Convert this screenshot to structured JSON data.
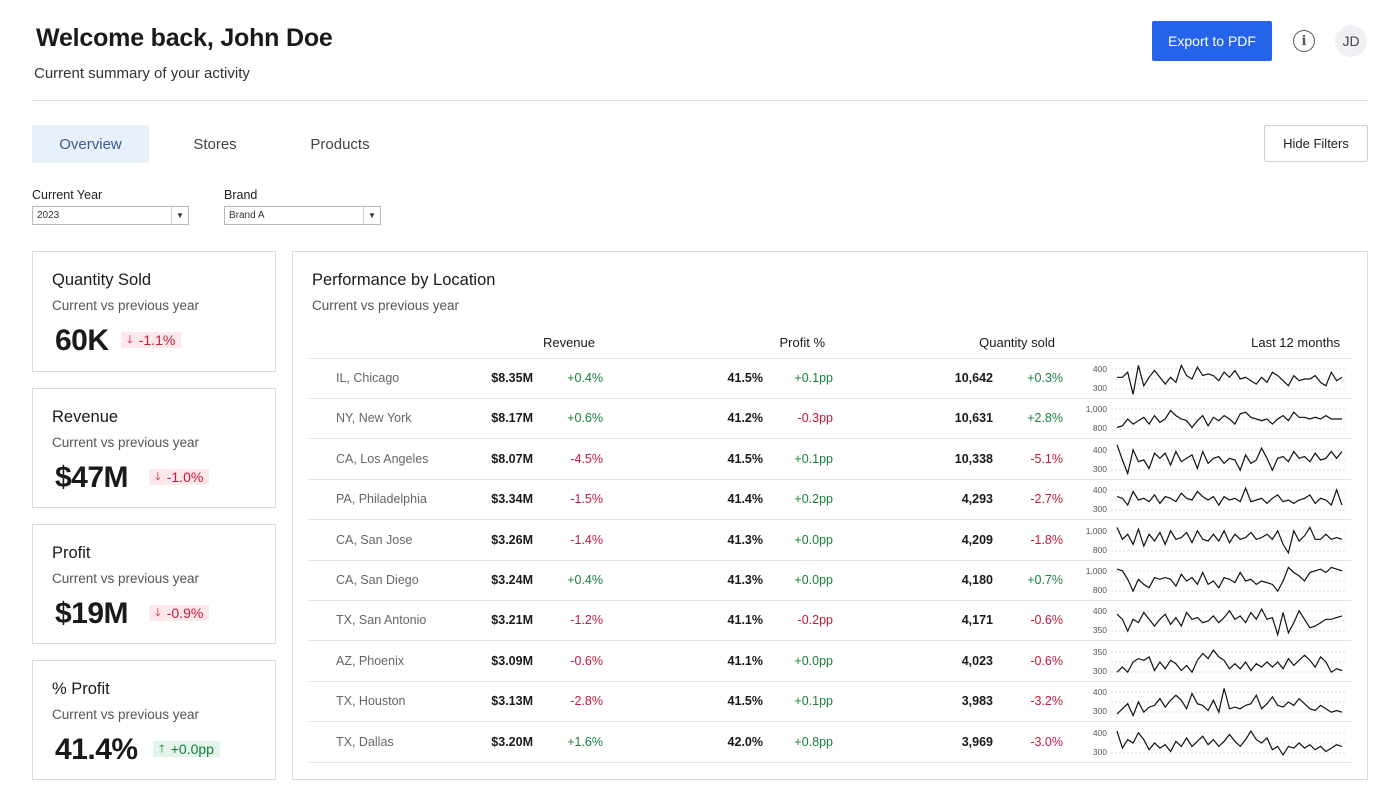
{
  "header": {
    "title": "Welcome back, John Doe",
    "subtitle": "Current summary of your activity",
    "export_label": "Export to PDF",
    "info_icon": "info-icon",
    "avatar_initials": "JD"
  },
  "tabs": [
    {
      "label": "Overview",
      "active": true
    },
    {
      "label": "Stores",
      "active": false
    },
    {
      "label": "Products",
      "active": false
    }
  ],
  "hide_filters_label": "Hide Filters",
  "filters": {
    "year": {
      "label": "Current Year",
      "value": "2023"
    },
    "brand": {
      "label": "Brand",
      "value": "Brand A"
    }
  },
  "kpis": [
    {
      "title": "Quantity Sold",
      "subtitle": "Current vs previous year",
      "value": "60K",
      "delta": "-1.1%",
      "direction": "down"
    },
    {
      "title": "Revenue",
      "subtitle": "Current vs previous year",
      "value": "$47M",
      "delta": "-1.0%",
      "direction": "down"
    },
    {
      "title": "Profit",
      "subtitle": "Current vs previous year",
      "value": "$19M",
      "delta": "-0.9%",
      "direction": "down"
    },
    {
      "title": "% Profit",
      "subtitle": "Current vs previous year",
      "value": "41.4%",
      "delta": "+0.0pp",
      "direction": "up"
    }
  ],
  "performance": {
    "title": "Performance by Location",
    "subtitle": "Current vs previous year",
    "columns": {
      "revenue": "Revenue",
      "profit": "Profit %",
      "quantity": "Quantity sold",
      "trend": "Last 12 months"
    },
    "rows": [
      {
        "location": "IL, Chicago",
        "revenue": "$8.35M",
        "revenue_delta": "+0.4%",
        "profit": "41.5%",
        "profit_delta": "+0.1pp",
        "quantity": "10,642",
        "quantity_delta": "+0.3%",
        "axis_top": "400",
        "axis_bottom": "300",
        "trend": [
          0.55,
          0.55,
          0.7,
          0.05,
          0.9,
          0.3,
          0.55,
          0.75,
          0.55,
          0.35,
          0.55,
          0.4,
          0.9,
          0.6,
          0.5,
          0.85,
          0.6,
          0.65,
          0.6,
          0.45,
          0.7,
          0.55,
          0.75,
          0.5,
          0.55,
          0.45,
          0.35,
          0.55,
          0.4,
          0.7,
          0.6,
          0.45,
          0.3,
          0.6,
          0.45,
          0.5,
          0.5,
          0.6,
          0.4,
          0.3,
          0.7,
          0.45,
          0.55
        ]
      },
      {
        "location": "NY, New York",
        "revenue": "$8.17M",
        "revenue_delta": "+0.6%",
        "profit": "41.2%",
        "profit_delta": "-0.3pp",
        "quantity": "10,631",
        "quantity_delta": "+2.8%",
        "axis_top": "1,000",
        "axis_bottom": "800",
        "trend": [
          0.25,
          0.3,
          0.5,
          0.35,
          0.45,
          0.55,
          0.35,
          0.6,
          0.4,
          0.5,
          0.75,
          0.6,
          0.5,
          0.45,
          0.25,
          0.45,
          0.6,
          0.3,
          0.55,
          0.45,
          0.6,
          0.5,
          0.35,
          0.65,
          0.7,
          0.55,
          0.5,
          0.45,
          0.5,
          0.35,
          0.5,
          0.6,
          0.45,
          0.7,
          0.55,
          0.55,
          0.5,
          0.55,
          0.5,
          0.6,
          0.5,
          0.5,
          0.5
        ]
      },
      {
        "location": "CA, Los Angeles",
        "revenue": "$8.07M",
        "revenue_delta": "-4.5%",
        "profit": "41.5%",
        "profit_delta": "+0.1pp",
        "quantity": "10,338",
        "quantity_delta": "-5.1%",
        "axis_top": "400",
        "axis_bottom": "300",
        "trend": [
          0.95,
          0.5,
          0.1,
          0.8,
          0.45,
          0.5,
          0.25,
          0.7,
          0.55,
          0.7,
          0.35,
          0.75,
          0.45,
          0.55,
          0.65,
          0.25,
          0.75,
          0.4,
          0.55,
          0.6,
          0.4,
          0.55,
          0.5,
          0.2,
          0.65,
          0.4,
          0.5,
          0.85,
          0.55,
          0.2,
          0.55,
          0.6,
          0.45,
          0.75,
          0.55,
          0.6,
          0.45,
          0.7,
          0.5,
          0.55,
          0.75,
          0.55,
          0.75
        ]
      },
      {
        "location": "PA, Philadelphia",
        "revenue": "$3.34M",
        "revenue_delta": "-1.5%",
        "profit": "41.4%",
        "profit_delta": "+0.2pp",
        "quantity": "4,293",
        "quantity_delta": "-2.7%",
        "axis_top": "400",
        "axis_bottom": "300",
        "trend": [
          0.6,
          0.55,
          0.35,
          0.75,
          0.5,
          0.55,
          0.45,
          0.65,
          0.4,
          0.6,
          0.55,
          0.45,
          0.7,
          0.55,
          0.5,
          0.75,
          0.6,
          0.5,
          0.6,
          0.35,
          0.6,
          0.5,
          0.55,
          0.45,
          0.85,
          0.45,
          0.5,
          0.55,
          0.4,
          0.55,
          0.65,
          0.45,
          0.5,
          0.4,
          0.5,
          0.55,
          0.65,
          0.4,
          0.55,
          0.5,
          0.35,
          0.8,
          0.35
        ]
      },
      {
        "location": "CA, San Jose",
        "revenue": "$3.26M",
        "revenue_delta": "-1.4%",
        "profit": "41.3%",
        "profit_delta": "+0.0pp",
        "quantity": "4,209",
        "quantity_delta": "-1.8%",
        "axis_top": "1,000",
        "axis_bottom": "800",
        "trend": [
          0.9,
          0.55,
          0.7,
          0.4,
          0.85,
          0.35,
          0.7,
          0.5,
          0.75,
          0.4,
          0.8,
          0.55,
          0.6,
          0.75,
          0.45,
          0.8,
          0.55,
          0.5,
          0.7,
          0.5,
          0.8,
          0.45,
          0.7,
          0.55,
          0.6,
          0.75,
          0.55,
          0.6,
          0.7,
          0.55,
          0.8,
          0.4,
          0.15,
          0.8,
          0.5,
          0.65,
          0.9,
          0.55,
          0.55,
          0.7,
          0.55,
          0.6,
          0.55
        ]
      },
      {
        "location": "CA, San Diego",
        "revenue": "$3.24M",
        "revenue_delta": "+0.4%",
        "profit": "41.3%",
        "profit_delta": "+0.0pp",
        "quantity": "4,180",
        "quantity_delta": "+0.7%",
        "axis_top": "1,000",
        "axis_bottom": "800",
        "trend": [
          0.85,
          0.8,
          0.55,
          0.2,
          0.55,
          0.4,
          0.3,
          0.6,
          0.55,
          0.6,
          0.55,
          0.35,
          0.7,
          0.5,
          0.6,
          0.4,
          0.75,
          0.4,
          0.5,
          0.3,
          0.6,
          0.55,
          0.45,
          0.75,
          0.5,
          0.55,
          0.4,
          0.5,
          0.45,
          0.4,
          0.2,
          0.5,
          0.9,
          0.75,
          0.65,
          0.5,
          0.75,
          0.8,
          0.85,
          0.75,
          0.9,
          0.85,
          0.8
        ]
      },
      {
        "location": "TX, San Antonio",
        "revenue": "$3.21M",
        "revenue_delta": "-1.2%",
        "profit": "41.1%",
        "profit_delta": "-0.2pp",
        "quantity": "4,171",
        "quantity_delta": "-0.6%",
        "axis_top": "400",
        "axis_bottom": "350",
        "trend": [
          0.7,
          0.55,
          0.2,
          0.55,
          0.45,
          0.75,
          0.55,
          0.35,
          0.55,
          0.7,
          0.4,
          0.6,
          0.35,
          0.75,
          0.55,
          0.6,
          0.45,
          0.5,
          0.65,
          0.45,
          0.6,
          0.8,
          0.55,
          0.65,
          0.45,
          0.75,
          0.55,
          0.85,
          0.55,
          0.6,
          0.1,
          0.75,
          0.15,
          0.45,
          0.8,
          0.55,
          0.3,
          0.35,
          0.45,
          0.55,
          0.55,
          0.6,
          0.65
        ]
      },
      {
        "location": "AZ, Phoenix",
        "revenue": "$3.09M",
        "revenue_delta": "-0.6%",
        "profit": "41.1%",
        "profit_delta": "+0.0pp",
        "quantity": "4,023",
        "quantity_delta": "-0.6%",
        "axis_top": "350",
        "axis_bottom": "300",
        "trend": [
          0.2,
          0.35,
          0.2,
          0.5,
          0.6,
          0.55,
          0.65,
          0.25,
          0.5,
          0.3,
          0.55,
          0.45,
          0.25,
          0.4,
          0.2,
          0.55,
          0.75,
          0.6,
          0.85,
          0.65,
          0.55,
          0.3,
          0.45,
          0.3,
          0.5,
          0.25,
          0.45,
          0.35,
          0.5,
          0.35,
          0.5,
          0.3,
          0.6,
          0.4,
          0.55,
          0.7,
          0.55,
          0.35,
          0.65,
          0.5,
          0.2,
          0.3,
          0.25
        ]
      },
      {
        "location": "TX, Houston",
        "revenue": "$3.13M",
        "revenue_delta": "-2.8%",
        "profit": "41.5%",
        "profit_delta": "+0.1pp",
        "quantity": "3,983",
        "quantity_delta": "-3.2%",
        "axis_top": "400",
        "axis_bottom": "300",
        "trend": [
          0.15,
          0.3,
          0.45,
          0.1,
          0.5,
          0.2,
          0.35,
          0.4,
          0.6,
          0.35,
          0.55,
          0.7,
          0.55,
          0.3,
          0.75,
          0.45,
          0.4,
          0.25,
          0.55,
          0.2,
          0.9,
          0.3,
          0.35,
          0.3,
          0.4,
          0.45,
          0.7,
          0.3,
          0.45,
          0.65,
          0.4,
          0.35,
          0.5,
          0.4,
          0.6,
          0.45,
          0.3,
          0.25,
          0.4,
          0.3,
          0.2,
          0.25,
          0.2
        ]
      },
      {
        "location": "TX, Dallas",
        "revenue": "$3.20M",
        "revenue_delta": "+1.6%",
        "profit": "42.0%",
        "profit_delta": "+0.8pp",
        "quantity": "3,969",
        "quantity_delta": "-3.0%",
        "axis_top": "400",
        "axis_bottom": "300",
        "trend": [
          0.85,
          0.35,
          0.6,
          0.5,
          0.8,
          0.6,
          0.3,
          0.5,
          0.35,
          0.45,
          0.25,
          0.55,
          0.4,
          0.65,
          0.4,
          0.55,
          0.7,
          0.45,
          0.6,
          0.4,
          0.55,
          0.75,
          0.55,
          0.4,
          0.6,
          0.85,
          0.6,
          0.5,
          0.65,
          0.3,
          0.4,
          0.15,
          0.4,
          0.35,
          0.5,
          0.35,
          0.45,
          0.3,
          0.4,
          0.25,
          0.35,
          0.45,
          0.4
        ]
      }
    ]
  }
}
